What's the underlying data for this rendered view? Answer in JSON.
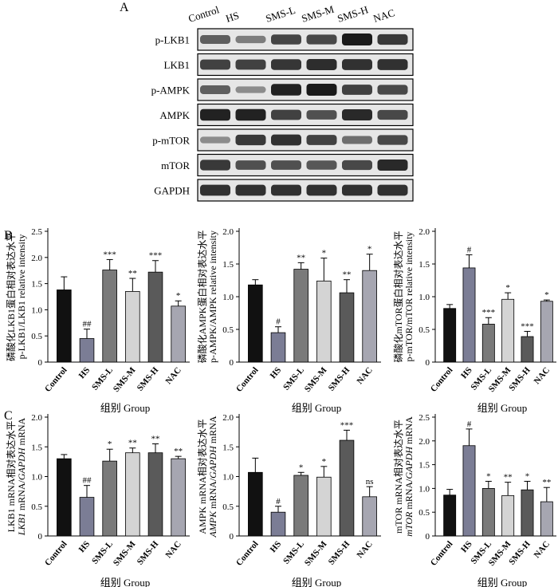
{
  "figure": {
    "panel_labels": {
      "A": "A",
      "B": "B",
      "C": "C"
    },
    "group_label": "组别 Group",
    "wb_colors": {
      "background": "#e6e6e6",
      "band": "#1a1a1a"
    }
  },
  "western_blot": {
    "lanes": [
      "Control",
      "HS",
      "SMS-L",
      "SMS-M",
      "SMS-H",
      "NAC"
    ],
    "rows": [
      {
        "label": "p-LKB1",
        "intensity": [
          0.55,
          0.35,
          0.72,
          0.7,
          1.0,
          0.8
        ]
      },
      {
        "label": "LKB1",
        "intensity": [
          0.75,
          0.75,
          0.82,
          0.88,
          0.85,
          0.85
        ]
      },
      {
        "label": "p-AMPK",
        "intensity": [
          0.55,
          0.25,
          0.95,
          1.0,
          0.75,
          0.7
        ]
      },
      {
        "label": "AMPK",
        "intensity": [
          0.95,
          0.95,
          0.75,
          0.65,
          0.9,
          0.7
        ]
      },
      {
        "label": "p-mTOR",
        "intensity": [
          0.25,
          0.8,
          0.85,
          0.75,
          0.45,
          0.7
        ]
      },
      {
        "label": "mTOR",
        "intensity": [
          0.8,
          0.65,
          0.65,
          0.6,
          0.7,
          0.9
        ]
      },
      {
        "label": "GAPDH",
        "intensity": [
          0.85,
          0.85,
          0.85,
          0.85,
          0.85,
          0.85
        ]
      }
    ]
  },
  "chart_data": [
    {
      "type": "bar",
      "panel": "B",
      "categories": [
        "Control",
        "HS",
        "SMS-L",
        "SMS-M",
        "SMS-H",
        "NAC"
      ],
      "values": [
        1.38,
        0.45,
        1.76,
        1.35,
        1.72,
        1.07
      ],
      "errors": [
        0.25,
        0.18,
        0.2,
        0.25,
        0.22,
        0.1
      ],
      "annotations": [
        "",
        "##",
        "***",
        "**",
        "***",
        "*"
      ],
      "colors": [
        "#111111",
        "#7b7d95",
        "#7a7a7a",
        "#d4d4d4",
        "#5a5a5a",
        "#a6a6b1"
      ],
      "ylabel_cn": "磷酸化LKB1蛋白相对表达水平",
      "ylabel": "p-LKB1/LKB1 relative intensity",
      "ylabel_italic": "",
      "xlabel": "组别 Group",
      "ylim": [
        0,
        2.5
      ],
      "yticks": [
        "0",
        "0.5",
        "1.0",
        "1.5",
        "2.0",
        "2.5"
      ]
    },
    {
      "type": "bar",
      "panel": "B",
      "categories": [
        "Control",
        "HS",
        "SMS-L",
        "SMS-M",
        "SMS-H",
        "NAC"
      ],
      "values": [
        1.18,
        0.45,
        1.42,
        1.24,
        1.06,
        1.4
      ],
      "errors": [
        0.08,
        0.09,
        0.1,
        0.35,
        0.2,
        0.25
      ],
      "annotations": [
        "",
        "#",
        "**",
        "*",
        "**",
        "*"
      ],
      "colors": [
        "#111111",
        "#7b7d95",
        "#7a7a7a",
        "#d4d4d4",
        "#5a5a5a",
        "#a6a6b1"
      ],
      "ylabel_cn": "磷酸化AMPK蛋白相对表达水平",
      "ylabel": "p-AMPK/AMPK relative intensity",
      "ylabel_italic": "",
      "xlabel": "组别 Group",
      "ylim": [
        0,
        2.0
      ],
      "yticks": [
        "0",
        "0.5",
        "1.0",
        "1.5",
        "2.0"
      ]
    },
    {
      "type": "bar",
      "panel": "B",
      "categories": [
        "Control",
        "HS",
        "SMS-L",
        "SMS-M",
        "SMS-H",
        "NAC"
      ],
      "values": [
        0.82,
        1.44,
        0.58,
        0.96,
        0.39,
        0.93
      ],
      "errors": [
        0.06,
        0.2,
        0.1,
        0.1,
        0.08,
        0.02
      ],
      "annotations": [
        "",
        "#",
        "***",
        "*",
        "***",
        "*"
      ],
      "colors": [
        "#111111",
        "#7b7d95",
        "#7a7a7a",
        "#d4d4d4",
        "#5a5a5a",
        "#a6a6b1"
      ],
      "ylabel_cn": "磷酸化mTOR蛋白相对表达水平",
      "ylabel": "p-mTOR/mTOR relative intensity",
      "ylabel_italic": "",
      "xlabel": "组别 Group",
      "ylim": [
        0,
        2.0
      ],
      "yticks": [
        "0",
        "0.5",
        "1.0",
        "1.5",
        "2.0"
      ]
    },
    {
      "type": "bar",
      "panel": "C",
      "categories": [
        "Control",
        "HS",
        "SMS-L",
        "SMS-M",
        "SMS-H",
        "NAC"
      ],
      "values": [
        1.3,
        0.65,
        1.26,
        1.4,
        1.4,
        1.3
      ],
      "errors": [
        0.07,
        0.2,
        0.2,
        0.08,
        0.15,
        0.04
      ],
      "annotations": [
        "",
        "##",
        "*",
        "**",
        "**",
        "**"
      ],
      "colors": [
        "#111111",
        "#7b7d95",
        "#7a7a7a",
        "#d4d4d4",
        "#5a5a5a",
        "#a6a6b1"
      ],
      "ylabel_cn": "LKB1 mRNA相对表达水平",
      "ylabel": " mRNA/",
      "ylabel_italic": "LKB1",
      "ylabel_italic2": "GAPDH",
      "ylabel_tail": " mRNA",
      "xlabel": "组别 Group",
      "ylim": [
        0,
        2.0
      ],
      "yticks": [
        "0",
        "0.5",
        "1.0",
        "1.5",
        "2.0"
      ]
    },
    {
      "type": "bar",
      "panel": "C",
      "categories": [
        "Control",
        "HS",
        "SMS-L",
        "SMS-M",
        "SMS-H",
        "NAC"
      ],
      "values": [
        1.07,
        0.4,
        1.02,
        0.99,
        1.61,
        0.66
      ],
      "errors": [
        0.24,
        0.1,
        0.05,
        0.18,
        0.17,
        0.17
      ],
      "annotations": [
        "",
        "#",
        "*",
        "*",
        "***",
        "ns"
      ],
      "colors": [
        "#111111",
        "#7b7d95",
        "#7a7a7a",
        "#d4d4d4",
        "#5a5a5a",
        "#a6a6b1"
      ],
      "ylabel_cn": "AMPK mRNA相对表达水平",
      "ylabel": " mRNA/",
      "ylabel_italic": "AMPK",
      "ylabel_italic2": "GAPDH",
      "ylabel_tail": " mRNA",
      "xlabel": "组别 Group",
      "ylim": [
        0,
        2.0
      ],
      "yticks": [
        "0",
        "0.5",
        "1.0",
        "1.5",
        "2.0"
      ]
    },
    {
      "type": "bar",
      "panel": "C",
      "categories": [
        "Control",
        "HS",
        "SMS-L",
        "SMS-M",
        "SMS-H",
        "NAC"
      ],
      "values": [
        0.86,
        1.9,
        1.0,
        0.85,
        0.97,
        0.72
      ],
      "errors": [
        0.12,
        0.35,
        0.15,
        0.28,
        0.18,
        0.3
      ],
      "annotations": [
        "",
        "#",
        "*",
        "**",
        "*",
        "**"
      ],
      "colors": [
        "#111111",
        "#7b7d95",
        "#7a7a7a",
        "#d4d4d4",
        "#5a5a5a",
        "#a6a6b1"
      ],
      "ylabel_cn": "mTOR mRNA相对表达水平",
      "ylabel": " mRNA/",
      "ylabel_italic": "mTOR",
      "ylabel_italic2": "GAPDH",
      "ylabel_tail": " mRNA",
      "xlabel": "组别 Group",
      "ylim": [
        0,
        2.5
      ],
      "yticks": [
        "0",
        "0.5",
        "1.0",
        "1.5",
        "2.0",
        "2.5"
      ]
    }
  ]
}
